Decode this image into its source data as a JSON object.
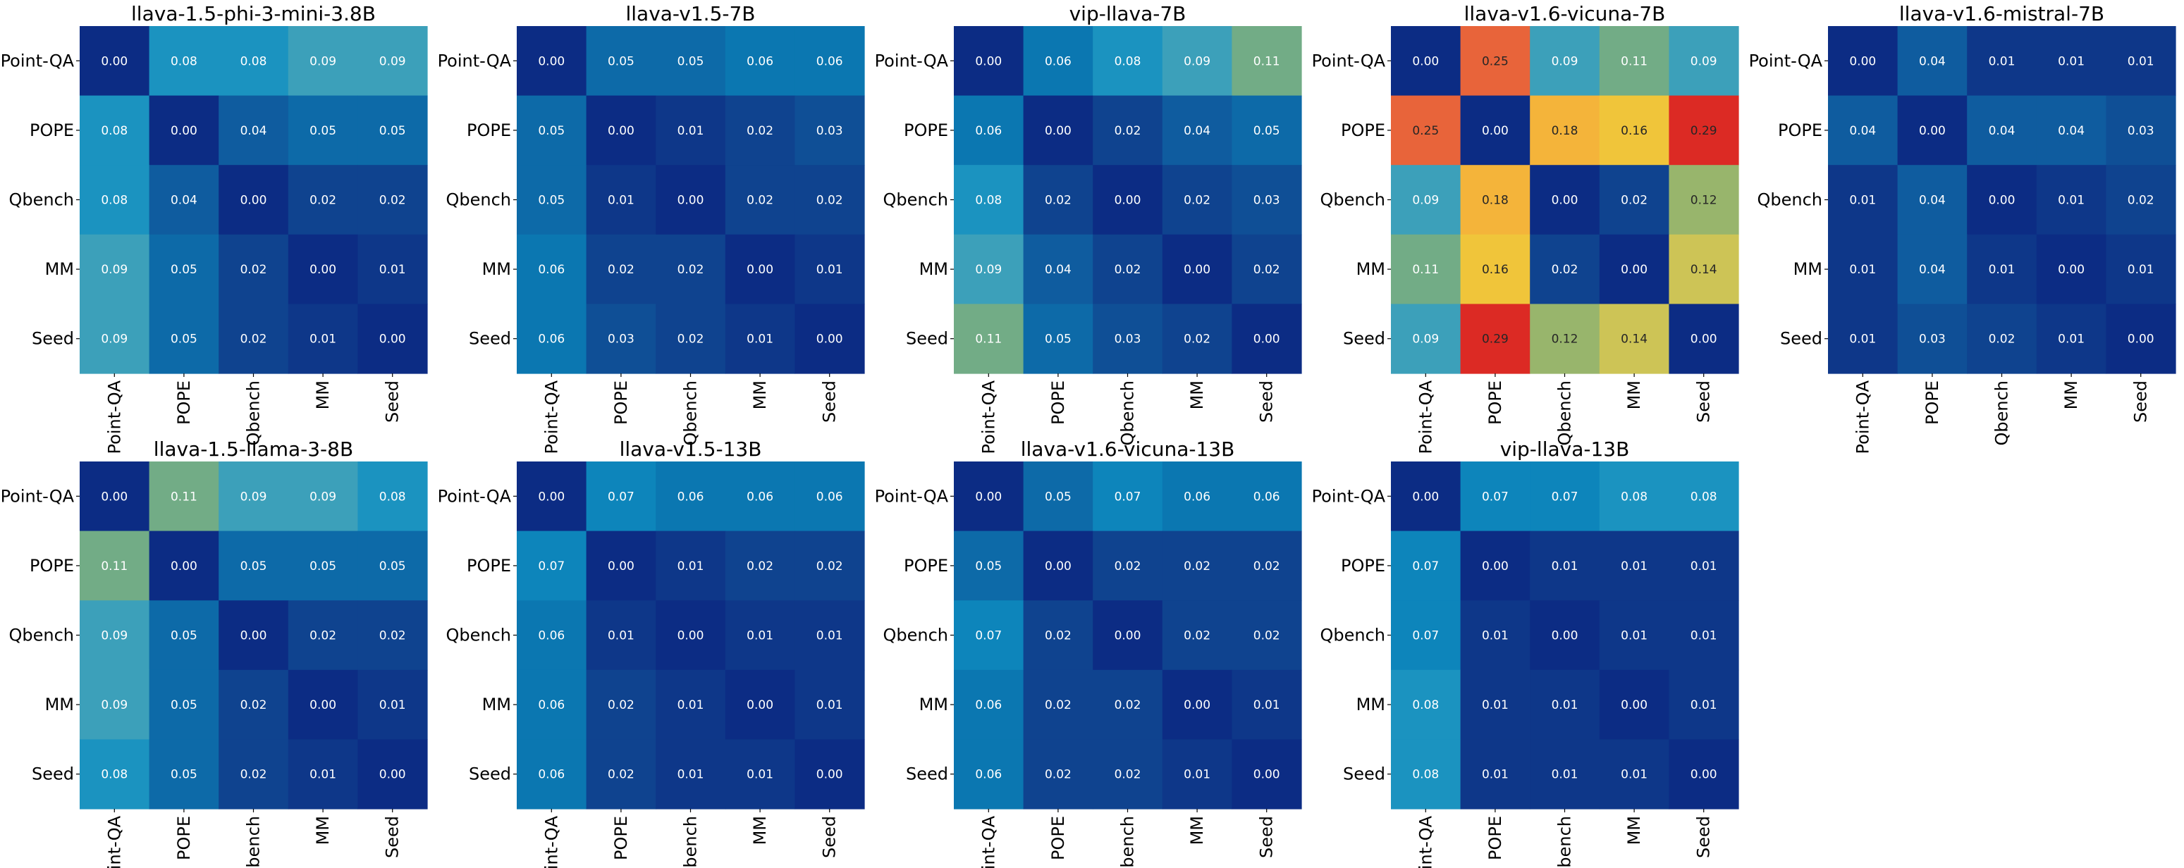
{
  "chart_data": [
    {
      "type": "heatmap",
      "title": "llava-1.5-phi-3-mini-3.8B",
      "row_labels": [
        "Point-QA",
        "POPE",
        "Qbench",
        "MM",
        "Seed"
      ],
      "col_labels": [
        "Point-QA",
        "POPE",
        "Qbench",
        "MM",
        "Seed"
      ],
      "values": [
        [
          0.0,
          0.08,
          0.08,
          0.09,
          0.09
        ],
        [
          0.08,
          0.0,
          0.04,
          0.05,
          0.05
        ],
        [
          0.08,
          0.04,
          0.0,
          0.02,
          0.02
        ],
        [
          0.09,
          0.05,
          0.02,
          0.0,
          0.01
        ],
        [
          0.09,
          0.05,
          0.02,
          0.01,
          0.0
        ]
      ],
      "value_labels": [
        [
          "0.00",
          "0.08",
          "0.08",
          "0.09",
          "0.09"
        ],
        [
          "0.08",
          "0.00",
          "0.04",
          "0.05",
          "0.05"
        ],
        [
          "0.08",
          "0.04",
          "0.00",
          "0.02",
          "0.02"
        ],
        [
          "0.09",
          "0.05",
          "0.02",
          "0.00",
          "0.01"
        ],
        [
          "0.09",
          "0.05",
          "0.02",
          "0.01",
          "0.00"
        ]
      ]
    },
    {
      "type": "heatmap",
      "title": "llava-v1.5-7B",
      "row_labels": [
        "Point-QA",
        "POPE",
        "Qbench",
        "MM",
        "Seed"
      ],
      "col_labels": [
        "Point-QA",
        "POPE",
        "Qbench",
        "MM",
        "Seed"
      ],
      "values": [
        [
          0.0,
          0.05,
          0.05,
          0.06,
          0.06
        ],
        [
          0.05,
          0.0,
          0.01,
          0.02,
          0.03
        ],
        [
          0.05,
          0.01,
          0.0,
          0.02,
          0.02
        ],
        [
          0.06,
          0.02,
          0.02,
          0.0,
          0.01
        ],
        [
          0.06,
          0.03,
          0.02,
          0.01,
          0.0
        ]
      ],
      "value_labels": [
        [
          "0.00",
          "0.05",
          "0.05",
          "0.06",
          "0.06"
        ],
        [
          "0.05",
          "0.00",
          "0.01",
          "0.02",
          "0.03"
        ],
        [
          "0.05",
          "0.01",
          "0.00",
          "0.02",
          "0.02"
        ],
        [
          "0.06",
          "0.02",
          "0.02",
          "0.00",
          "0.01"
        ],
        [
          "0.06",
          "0.03",
          "0.02",
          "0.01",
          "0.00"
        ]
      ]
    },
    {
      "type": "heatmap",
      "title": "vip-llava-7B",
      "row_labels": [
        "Point-QA",
        "POPE",
        "Qbench",
        "MM",
        "Seed"
      ],
      "col_labels": [
        "Point-QA",
        "POPE",
        "Qbench",
        "MM",
        "Seed"
      ],
      "values": [
        [
          0.0,
          0.06,
          0.08,
          0.09,
          0.11
        ],
        [
          0.06,
          0.0,
          0.02,
          0.04,
          0.05
        ],
        [
          0.08,
          0.02,
          0.0,
          0.02,
          0.03
        ],
        [
          0.09,
          0.04,
          0.02,
          0.0,
          0.02
        ],
        [
          0.11,
          0.05,
          0.03,
          0.02,
          0.0
        ]
      ],
      "value_labels": [
        [
          "0.00",
          "0.06",
          "0.08",
          "0.09",
          "0.11"
        ],
        [
          "0.06",
          "0.00",
          "0.02",
          "0.04",
          "0.05"
        ],
        [
          "0.08",
          "0.02",
          "0.00",
          "0.02",
          "0.03"
        ],
        [
          "0.09",
          "0.04",
          "0.02",
          "0.00",
          "0.02"
        ],
        [
          "0.11",
          "0.05",
          "0.03",
          "0.02",
          "0.00"
        ]
      ]
    },
    {
      "type": "heatmap",
      "title": "llava-v1.6-vicuna-7B",
      "row_labels": [
        "Point-QA",
        "POPE",
        "Qbench",
        "MM",
        "Seed"
      ],
      "col_labels": [
        "Point-QA",
        "POPE",
        "Qbench",
        "MM",
        "Seed"
      ],
      "values": [
        [
          0.0,
          0.25,
          0.09,
          0.11,
          0.09
        ],
        [
          0.25,
          0.0,
          0.18,
          0.16,
          0.29
        ],
        [
          0.09,
          0.18,
          0.0,
          0.02,
          0.12
        ],
        [
          0.11,
          0.16,
          0.02,
          0.0,
          0.14
        ],
        [
          0.09,
          0.29,
          0.12,
          0.14,
          0.0
        ]
      ],
      "value_labels": [
        [
          "0.00",
          "0.25",
          "0.09",
          "0.11",
          "0.09"
        ],
        [
          "0.25",
          "0.00",
          "0.18",
          "0.16",
          "0.29"
        ],
        [
          "0.09",
          "0.18",
          "0.00",
          "0.02",
          "0.12"
        ],
        [
          "0.11",
          "0.16",
          "0.02",
          "0.00",
          "0.14"
        ],
        [
          "0.09",
          "0.29",
          "0.12",
          "0.14",
          "0.00"
        ]
      ]
    },
    {
      "type": "heatmap",
      "title": "llava-v1.6-mistral-7B",
      "row_labels": [
        "Point-QA",
        "POPE",
        "Qbench",
        "MM",
        "Seed"
      ],
      "col_labels": [
        "Point-QA",
        "POPE",
        "Qbench",
        "MM",
        "Seed"
      ],
      "values": [
        [
          0.0,
          0.04,
          0.01,
          0.01,
          0.01
        ],
        [
          0.04,
          0.0,
          0.04,
          0.04,
          0.03
        ],
        [
          0.01,
          0.04,
          0.0,
          0.01,
          0.02
        ],
        [
          0.01,
          0.04,
          0.01,
          0.0,
          0.01
        ],
        [
          0.01,
          0.03,
          0.02,
          0.01,
          0.0
        ]
      ],
      "value_labels": [
        [
          "0.00",
          "0.04",
          "0.01",
          "0.01",
          "0.01"
        ],
        [
          "0.04",
          "0.00",
          "0.04",
          "0.04",
          "0.03"
        ],
        [
          "0.01",
          "0.04",
          "0.00",
          "0.01",
          "0.02"
        ],
        [
          "0.01",
          "0.04",
          "0.01",
          "0.00",
          "0.01"
        ],
        [
          "0.01",
          "0.03",
          "0.02",
          "0.01",
          "0.00"
        ]
      ]
    },
    {
      "type": "heatmap",
      "title": "llava-1.5-llama-3-8B",
      "row_labels": [
        "Point-QA",
        "POPE",
        "Qbench",
        "MM",
        "Seed"
      ],
      "col_labels": [
        "Point-QA",
        "POPE",
        "Qbench",
        "MM",
        "Seed"
      ],
      "values": [
        [
          0.0,
          0.11,
          0.09,
          0.09,
          0.08
        ],
        [
          0.11,
          0.0,
          0.05,
          0.05,
          0.05
        ],
        [
          0.09,
          0.05,
          0.0,
          0.02,
          0.02
        ],
        [
          0.09,
          0.05,
          0.02,
          0.0,
          0.01
        ],
        [
          0.08,
          0.05,
          0.02,
          0.01,
          0.0
        ]
      ],
      "value_labels": [
        [
          "0.00",
          "0.11",
          "0.09",
          "0.09",
          "0.08"
        ],
        [
          "0.11",
          "0.00",
          "0.05",
          "0.05",
          "0.05"
        ],
        [
          "0.09",
          "0.05",
          "0.00",
          "0.02",
          "0.02"
        ],
        [
          "0.09",
          "0.05",
          "0.02",
          "0.00",
          "0.01"
        ],
        [
          "0.08",
          "0.05",
          "0.02",
          "0.01",
          "0.00"
        ]
      ]
    },
    {
      "type": "heatmap",
      "title": "llava-v1.5-13B",
      "row_labels": [
        "Point-QA",
        "POPE",
        "Qbench",
        "MM",
        "Seed"
      ],
      "col_labels": [
        "Point-QA",
        "POPE",
        "Qbench",
        "MM",
        "Seed"
      ],
      "values": [
        [
          0.0,
          0.07,
          0.06,
          0.06,
          0.06
        ],
        [
          0.07,
          0.0,
          0.01,
          0.02,
          0.02
        ],
        [
          0.06,
          0.01,
          0.0,
          0.01,
          0.01
        ],
        [
          0.06,
          0.02,
          0.01,
          0.0,
          0.01
        ],
        [
          0.06,
          0.02,
          0.01,
          0.01,
          0.0
        ]
      ],
      "value_labels": [
        [
          "0.00",
          "0.07",
          "0.06",
          "0.06",
          "0.06"
        ],
        [
          "0.07",
          "0.00",
          "0.01",
          "0.02",
          "0.02"
        ],
        [
          "0.06",
          "0.01",
          "0.00",
          "0.01",
          "0.01"
        ],
        [
          "0.06",
          "0.02",
          "0.01",
          "0.00",
          "0.01"
        ],
        [
          "0.06",
          "0.02",
          "0.01",
          "0.01",
          "0.00"
        ]
      ]
    },
    {
      "type": "heatmap",
      "title": "llava-v1.6-vicuna-13B",
      "row_labels": [
        "Point-QA",
        "POPE",
        "Qbench",
        "MM",
        "Seed"
      ],
      "col_labels": [
        "Point-QA",
        "POPE",
        "Qbench",
        "MM",
        "Seed"
      ],
      "values": [
        [
          0.0,
          0.05,
          0.07,
          0.06,
          0.06
        ],
        [
          0.05,
          0.0,
          0.02,
          0.02,
          0.02
        ],
        [
          0.07,
          0.02,
          0.0,
          0.02,
          0.02
        ],
        [
          0.06,
          0.02,
          0.02,
          0.0,
          0.01
        ],
        [
          0.06,
          0.02,
          0.02,
          0.01,
          0.0
        ]
      ],
      "value_labels": [
        [
          "0.00",
          "0.05",
          "0.07",
          "0.06",
          "0.06"
        ],
        [
          "0.05",
          "0.00",
          "0.02",
          "0.02",
          "0.02"
        ],
        [
          "0.07",
          "0.02",
          "0.00",
          "0.02",
          "0.02"
        ],
        [
          "0.06",
          "0.02",
          "0.02",
          "0.00",
          "0.01"
        ],
        [
          "0.06",
          "0.02",
          "0.02",
          "0.01",
          "0.00"
        ]
      ]
    },
    {
      "type": "heatmap",
      "title": "vip-llava-13B",
      "row_labels": [
        "Point-QA",
        "POPE",
        "Qbench",
        "MM",
        "Seed"
      ],
      "col_labels": [
        "Point-QA",
        "POPE",
        "Qbench",
        "MM",
        "Seed"
      ],
      "values": [
        [
          0.0,
          0.07,
          0.07,
          0.08,
          0.08
        ],
        [
          0.07,
          0.0,
          0.01,
          0.01,
          0.01
        ],
        [
          0.07,
          0.01,
          0.0,
          0.01,
          0.01
        ],
        [
          0.08,
          0.01,
          0.01,
          0.0,
          0.01
        ],
        [
          0.08,
          0.01,
          0.01,
          0.01,
          0.0
        ]
      ],
      "value_labels": [
        [
          "0.00",
          "0.07",
          "0.07",
          "0.08",
          "0.08"
        ],
        [
          "0.07",
          "0.00",
          "0.01",
          "0.01",
          "0.01"
        ],
        [
          "0.07",
          "0.01",
          "0.00",
          "0.01",
          "0.01"
        ],
        [
          "0.08",
          "0.01",
          "0.01",
          "0.00",
          "0.01"
        ],
        [
          "0.08",
          "0.01",
          "0.01",
          "0.01",
          "0.00"
        ]
      ]
    }
  ],
  "colormap": {
    "stops": [
      {
        "v": 0.0,
        "color": "#0c2c84"
      },
      {
        "v": 0.01,
        "color": "#0e3789"
      },
      {
        "v": 0.02,
        "color": "#0f438f"
      },
      {
        "v": 0.03,
        "color": "#0f4f96"
      },
      {
        "v": 0.04,
        "color": "#0f5c9f"
      },
      {
        "v": 0.05,
        "color": "#0d6aa8"
      },
      {
        "v": 0.06,
        "color": "#0b77b1"
      },
      {
        "v": 0.07,
        "color": "#0d85bb"
      },
      {
        "v": 0.08,
        "color": "#1b93c0"
      },
      {
        "v": 0.09,
        "color": "#3ca0ba"
      },
      {
        "v": 0.11,
        "color": "#72ac86"
      },
      {
        "v": 0.12,
        "color": "#98b56c"
      },
      {
        "v": 0.14,
        "color": "#cdc456"
      },
      {
        "v": 0.16,
        "color": "#f0c53a"
      },
      {
        "v": 0.18,
        "color": "#f4b43a"
      },
      {
        "v": 0.25,
        "color": "#e8643a"
      },
      {
        "v": 0.29,
        "color": "#dc2a24"
      }
    ],
    "dark_text_from": 0.12,
    "light_text_color": "#ffffff",
    "dark_text_color": "#262626"
  }
}
